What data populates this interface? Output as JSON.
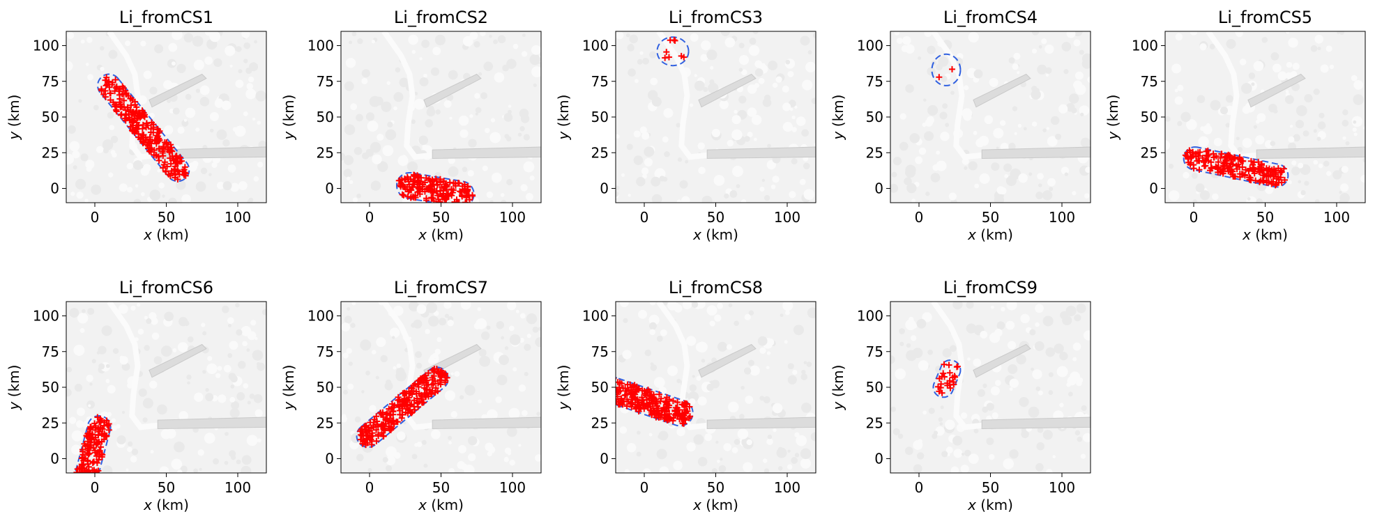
{
  "figure": {
    "colors": {
      "marker": "#ff0000",
      "boundary": "#3060e0",
      "map_bg": "#f2f2f2",
      "map_feature": "#dcdcdc"
    }
  },
  "chart_data": [
    {
      "type": "scatter",
      "title": "Li_fromCS1",
      "xlabel_var": "x",
      "xlabel_unit": " (km)",
      "ylabel_var": "y",
      "ylabel_unit": " (km)",
      "xlim": [
        -20,
        120
      ],
      "ylim": [
        -10,
        110
      ],
      "xticks": [
        0,
        50,
        100
      ],
      "yticks": [
        0,
        25,
        50,
        75,
        100
      ],
      "region": {
        "shape": "capsule",
        "from": [
          10,
          72
        ],
        "to": [
          58,
          13
        ],
        "radius": 8
      },
      "n_points": 230,
      "seed": 11
    },
    {
      "type": "scatter",
      "title": "Li_fromCS2",
      "xlabel_var": "x",
      "xlabel_unit": " (km)",
      "ylabel_var": "y",
      "ylabel_unit": " (km)",
      "xlim": [
        -20,
        120
      ],
      "ylim": [
        -10,
        110
      ],
      "xticks": [
        0,
        50,
        100
      ],
      "yticks": [
        0,
        25,
        50,
        75,
        100
      ],
      "region": {
        "shape": "capsule",
        "from": [
          28,
          2
        ],
        "to": [
          64,
          -4
        ],
        "radius": 9
      },
      "n_points": 170,
      "seed": 22
    },
    {
      "type": "scatter",
      "title": "Li_fromCS3",
      "xlabel_var": "x",
      "xlabel_unit": " (km)",
      "ylabel_var": "y",
      "ylabel_unit": " (km)",
      "xlim": [
        -20,
        120
      ],
      "ylim": [
        -10,
        110
      ],
      "xticks": [
        0,
        50,
        100
      ],
      "yticks": [
        0,
        25,
        50,
        75,
        100
      ],
      "region": {
        "shape": "ellipse",
        "center": [
          20,
          96
        ],
        "rx": 11,
        "ry": 10
      },
      "n_points": 8,
      "seed": 33
    },
    {
      "type": "scatter",
      "title": "Li_fromCS4",
      "xlabel_var": "x",
      "xlabel_unit": " (km)",
      "ylabel_var": "y",
      "ylabel_unit": " (km)",
      "xlim": [
        -20,
        120
      ],
      "ylim": [
        -10,
        110
      ],
      "xticks": [
        0,
        50,
        100
      ],
      "yticks": [
        0,
        25,
        50,
        75,
        100
      ],
      "region": {
        "shape": "ellipse",
        "center": [
          19,
          83
        ],
        "rx": 10,
        "ry": 11
      },
      "n_points": 2,
      "seed": 44
    },
    {
      "type": "scatter",
      "title": "Li_fromCS5",
      "xlabel_var": "x",
      "xlabel_unit": " (km)",
      "ylabel_var": "y",
      "ylabel_unit": " (km)",
      "xlim": [
        -20,
        120
      ],
      "ylim": [
        -10,
        110
      ],
      "xticks": [
        0,
        50,
        100
      ],
      "yticks": [
        0,
        25,
        50,
        75,
        100
      ],
      "region": {
        "shape": "capsule",
        "from": [
          1,
          21
        ],
        "to": [
          58,
          9
        ],
        "radius": 8
      },
      "n_points": 190,
      "seed": 55
    },
    {
      "type": "scatter",
      "title": "Li_fromCS6",
      "xlabel_var": "x",
      "xlabel_unit": " (km)",
      "ylabel_var": "y",
      "ylabel_unit": " (km)",
      "xlim": [
        -20,
        120
      ],
      "ylim": [
        -10,
        110
      ],
      "xticks": [
        0,
        50,
        100
      ],
      "yticks": [
        0,
        25,
        50,
        75,
        100
      ],
      "region": {
        "shape": "capsule",
        "from": [
          3,
          22
        ],
        "to": [
          -6,
          -12
        ],
        "radius": 8
      },
      "n_points": 150,
      "seed": 66
    },
    {
      "type": "scatter",
      "title": "Li_fromCS7",
      "xlabel_var": "x",
      "xlabel_unit": " (km)",
      "ylabel_var": "y",
      "ylabel_unit": " (km)",
      "xlim": [
        -20,
        120
      ],
      "ylim": [
        -10,
        110
      ],
      "xticks": [
        0,
        50,
        100
      ],
      "yticks": [
        0,
        25,
        50,
        75,
        100
      ],
      "region": {
        "shape": "capsule",
        "from": [
          -1,
          16
        ],
        "to": [
          47,
          56
        ],
        "radius": 8
      },
      "n_points": 240,
      "seed": 77
    },
    {
      "type": "scatter",
      "title": "Li_fromCS8",
      "xlabel_var": "x",
      "xlabel_unit": " (km)",
      "ylabel_var": "y",
      "ylabel_unit": " (km)",
      "xlim": [
        -20,
        120
      ],
      "ylim": [
        -10,
        110
      ],
      "xticks": [
        0,
        50,
        100
      ],
      "yticks": [
        0,
        25,
        50,
        75,
        100
      ],
      "region": {
        "shape": "capsule",
        "from": [
          -22,
          48
        ],
        "to": [
          25,
          32
        ],
        "radius": 9
      },
      "n_points": 260,
      "seed": 88
    },
    {
      "type": "scatter",
      "title": "Li_fromCS9",
      "xlabel_var": "x",
      "xlabel_unit": " (km)",
      "ylabel_var": "y",
      "ylabel_unit": " (km)",
      "xlim": [
        -20,
        120
      ],
      "ylim": [
        -10,
        110
      ],
      "xticks": [
        0,
        50,
        100
      ],
      "yticks": [
        0,
        25,
        50,
        75,
        100
      ],
      "region": {
        "shape": "capsule",
        "from": [
          22,
          62
        ],
        "to": [
          17,
          50
        ],
        "radius": 7
      },
      "n_points": 24,
      "seed": 99
    }
  ]
}
